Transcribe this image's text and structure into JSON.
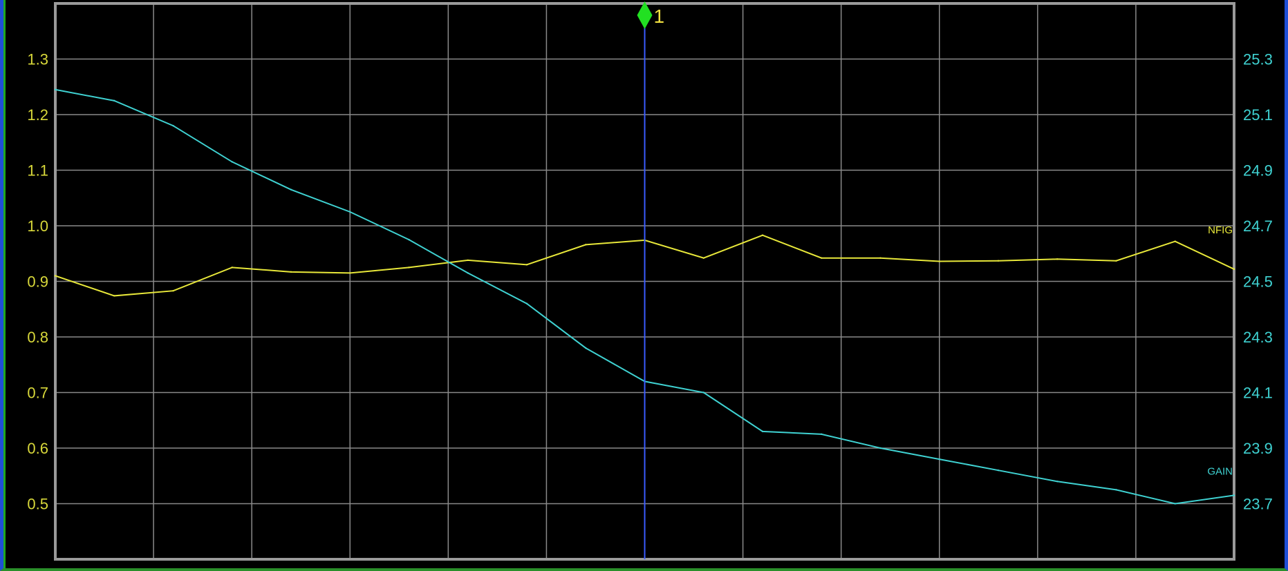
{
  "chart_data": {
    "type": "line",
    "x": [
      0,
      1,
      2,
      3,
      4,
      5,
      6,
      7,
      8,
      9,
      10,
      11,
      12,
      13,
      14,
      15,
      16,
      17,
      18,
      19,
      20
    ],
    "left_axis": {
      "ticks": [
        "0.5",
        "0.6",
        "0.7",
        "0.8",
        "0.9",
        "1.0",
        "1.1",
        "1.2",
        "1.3"
      ],
      "range": [
        0.4,
        1.4
      ]
    },
    "right_axis": {
      "ticks": [
        "23.7",
        "23.9",
        "24.1",
        "24.3",
        "24.5",
        "24.7",
        "24.9",
        "25.1",
        "25.3"
      ],
      "range": [
        23.5,
        25.5
      ]
    },
    "series": [
      {
        "name": "NFIG",
        "axis": "left",
        "color": "#e8e83a",
        "values": [
          0.91,
          0.874,
          0.883,
          0.925,
          0.917,
          0.915,
          0.925,
          0.938,
          0.93,
          0.966,
          0.974,
          0.942,
          0.983,
          0.942,
          0.942,
          0.936,
          0.937,
          0.94,
          0.937,
          0.972,
          0.922
        ]
      },
      {
        "name": "GAIN",
        "axis": "right",
        "color": "#3fd2d2",
        "values": [
          25.19,
          25.15,
          25.06,
          24.93,
          24.83,
          24.75,
          24.65,
          24.53,
          24.42,
          24.26,
          24.14,
          24.1,
          23.96,
          23.95,
          23.9,
          23.86,
          23.82,
          23.78,
          23.75,
          23.7,
          23.73
        ]
      }
    ],
    "marker": {
      "label": "1",
      "x": 10,
      "line_color": "#3a5cff",
      "diamond_color": "#22e022"
    },
    "grid": true,
    "grid_color": "#8a8a8a",
    "left_tick_color": "#d8d83a",
    "right_tick_color": "#3fd2d2"
  }
}
